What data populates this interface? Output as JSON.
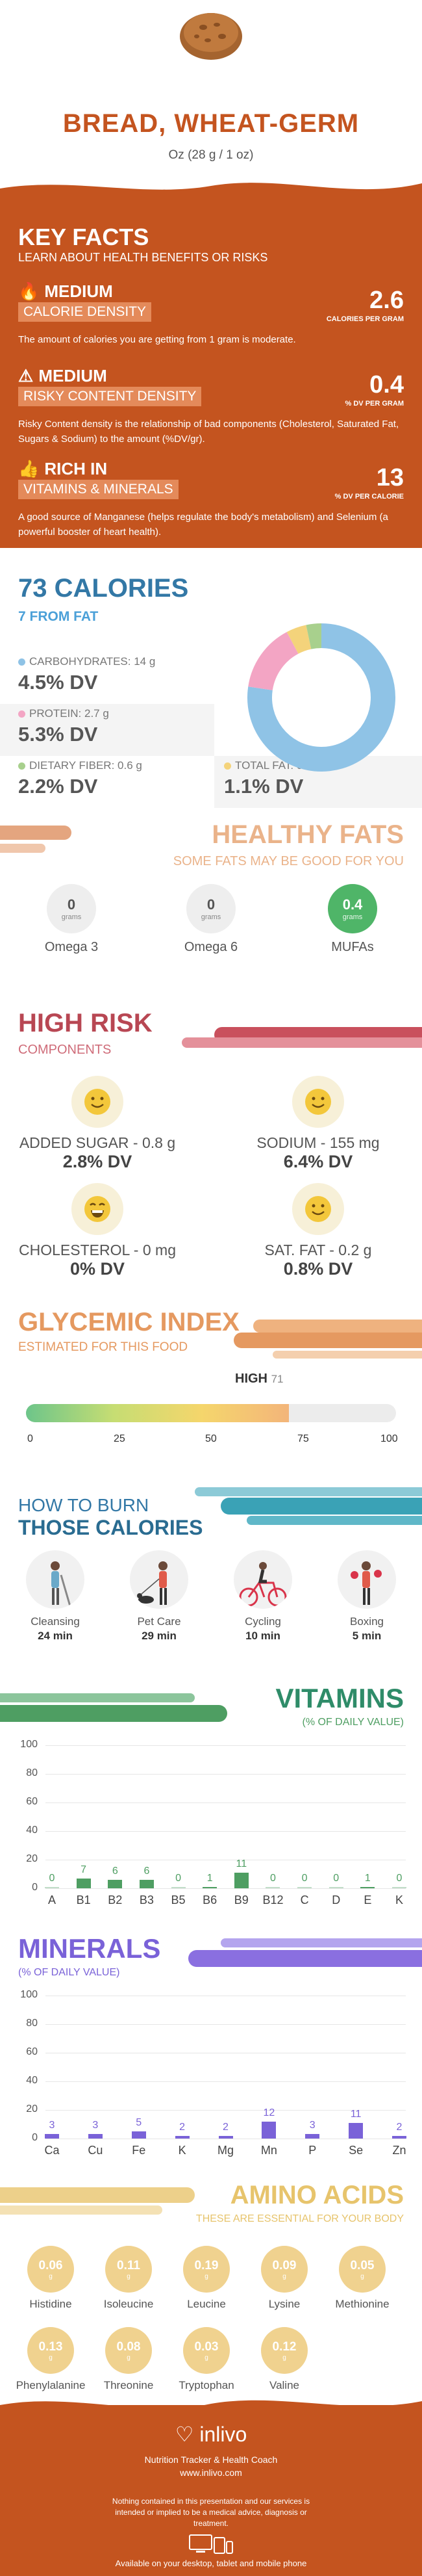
{
  "header": {
    "title": "BREAD, WHEAT-GERM",
    "serving": "Oz (28 g / 1 oz)"
  },
  "key_facts": {
    "title": "KEY FACTS",
    "subtitle": "LEARN ABOUT HEALTH BENEFITS OR RISKS",
    "facts": [
      {
        "level": "MEDIUM",
        "label": "CALORIE DENSITY",
        "value": "2.6",
        "unit": "CALORIES PER GRAM",
        "desc": "The amount of calories you are getting from 1 gram is moderate."
      },
      {
        "level": "MEDIUM",
        "label": "RISKY CONTENT DENSITY",
        "value": "0.4",
        "unit": "% DV PER GRAM",
        "desc": "Risky Content density is the relationship of bad components (Cholesterol, Saturated Fat, Sugars & Sodium) to the amount (%DV/gr)."
      },
      {
        "level": "RICH  IN",
        "label": "VITAMINS & MINERALS",
        "value": "13",
        "unit": "% DV PER CALORIE",
        "desc": "A good source of Manganese (helps regulate the body's metabolism) and Selenium (a powerful booster of heart health)."
      }
    ]
  },
  "calories": {
    "title": "73 CALORIES",
    "from_fat": "7 FROM FAT",
    "items": [
      {
        "label": "CARBOHYDRATES: 14 g",
        "dv": "4.5% DV",
        "color": "#8fc3e6",
        "grams": 14
      },
      {
        "label": "PROTEIN: 2.7 g",
        "dv": "5.3% DV",
        "color": "#f3a5c4",
        "grams": 2.7
      },
      {
        "label": "DIETARY FIBER: 0.6 g",
        "dv": "2.2% DV",
        "color": "#a8d08d",
        "grams": 0.6
      },
      {
        "label": "TOTAL FAT: 0.8 g",
        "dv": "1.1% DV",
        "color": "#f4d37b",
        "grams": 0.8
      }
    ]
  },
  "healthy_fats": {
    "title": "HEALTHY FATS",
    "subtitle": "SOME FATS MAY BE GOOD FOR YOU",
    "items": [
      {
        "value": "0",
        "unit": "grams",
        "name": "Omega 3"
      },
      {
        "value": "0",
        "unit": "grams",
        "name": "Omega 6"
      },
      {
        "value": "0.4",
        "unit": "grams",
        "name": "MUFAs"
      }
    ]
  },
  "high_risk": {
    "title": "HIGH RISK",
    "subtitle": "COMPONENTS",
    "items": [
      {
        "name": "ADDED SUGAR - 0.8 g",
        "dv": "2.8% DV"
      },
      {
        "name": "SODIUM - 155 mg",
        "dv": "6.4% DV"
      },
      {
        "name": "CHOLESTEROL - 0 mg",
        "dv": "0% DV"
      },
      {
        "name": "SAT. FAT - 0.2 g",
        "dv": "0.8% DV"
      }
    ]
  },
  "glycemic": {
    "title": "GLYCEMIC INDEX",
    "subtitle": "ESTIMATED FOR THIS FOOD",
    "level": "HIGH",
    "value": 71,
    "value_text": "71",
    "ticks": [
      "0",
      "25",
      "50",
      "75",
      "100"
    ]
  },
  "burn": {
    "title_line1": "HOW TO BURN",
    "title_line2": "THOSE CALORIES",
    "activities": [
      {
        "name": "Cleansing",
        "minutes": "24 min"
      },
      {
        "name": "Pet Care",
        "minutes": "29 min"
      },
      {
        "name": "Cycling",
        "minutes": "10 min"
      },
      {
        "name": "Boxing",
        "minutes": "5 min"
      }
    ]
  },
  "vitamins": {
    "title": "VITAMINS",
    "subtitle": "(% OF DAILY VALUE)",
    "color": "#4e9e62"
  },
  "minerals": {
    "title": "MINERALS",
    "subtitle": "(% OF DAILY VALUE)",
    "color": "#7a62d8"
  },
  "chart_data": [
    {
      "type": "bar",
      "title": "VITAMINS",
      "subtitle": "(% OF DAILY VALUE)",
      "categories": [
        "A",
        "B1",
        "B2",
        "B3",
        "B5",
        "B6",
        "B9",
        "B12",
        "C",
        "D",
        "E",
        "K"
      ],
      "values": [
        0,
        7,
        6,
        6,
        0,
        1,
        11,
        0,
        0,
        0,
        1,
        0
      ],
      "yticks": [
        "100",
        "80",
        "60",
        "40",
        "20",
        "0"
      ],
      "ylim": [
        0,
        100
      ],
      "grid": true
    },
    {
      "type": "bar",
      "title": "MINERALS",
      "subtitle": "(% OF DAILY VALUE)",
      "categories": [
        "Ca",
        "Cu",
        "Fe",
        "K",
        "Mg",
        "Mn",
        "P",
        "Se",
        "Zn"
      ],
      "values": [
        3,
        3,
        5,
        2,
        2,
        12,
        3,
        11,
        2
      ],
      "yticks": [
        "100",
        "80",
        "60",
        "40",
        "20",
        "0"
      ],
      "ylim": [
        0,
        100
      ],
      "grid": true
    }
  ],
  "amino": {
    "title": "AMINO ACIDS",
    "subtitle": "THESE ARE ESSENTIAL FOR YOUR BODY",
    "items": [
      {
        "value": "0.06",
        "unit": "g",
        "name": "Histidine"
      },
      {
        "value": "0.11",
        "unit": "g",
        "name": "Isoleucine"
      },
      {
        "value": "0.19",
        "unit": "g",
        "name": "Leucine"
      },
      {
        "value": "0.09",
        "unit": "g",
        "name": "Lysine"
      },
      {
        "value": "0.05",
        "unit": "g",
        "name": "Methionine"
      },
      {
        "value": "0.13",
        "unit": "g",
        "name": "Phenylalanine"
      },
      {
        "value": "0.08",
        "unit": "g",
        "name": "Threonine"
      },
      {
        "value": "0.03",
        "unit": "g",
        "name": "Tryptophan"
      },
      {
        "value": "0.12",
        "unit": "g",
        "name": "Valine"
      }
    ]
  },
  "footer": {
    "brand": "inlivo",
    "tagline": "Nutrition Tracker & Health Coach",
    "url": "www.inlivo.com",
    "disclaimer": "Nothing contained in this presentation and our services is intended or implied to be a medical advice, diagnosis or treatment.",
    "available": "Available on your desktop, tablet and mobile phone"
  }
}
